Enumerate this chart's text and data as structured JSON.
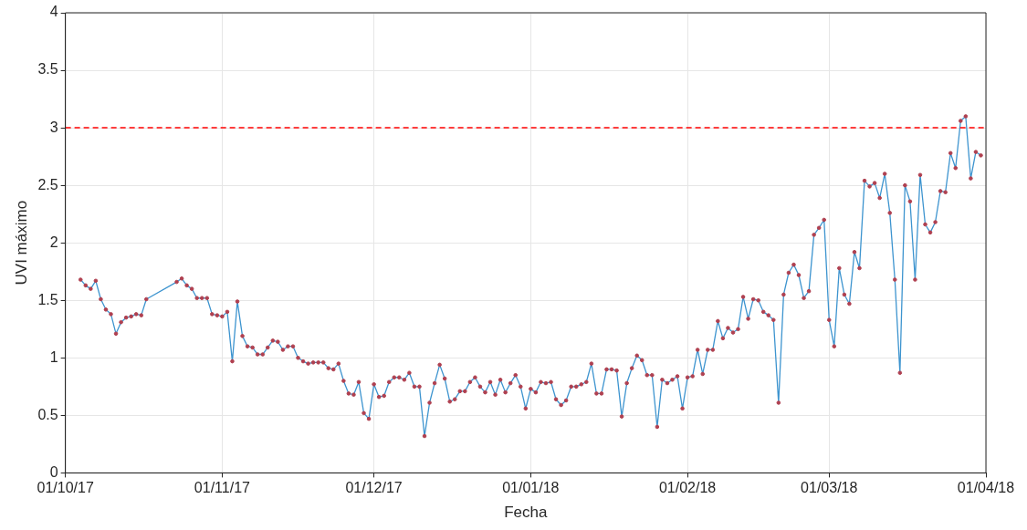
{
  "chart_data": {
    "type": "line",
    "xlabel": "Fecha",
    "ylabel": "UVI máximo",
    "x": [
      "2017-10-04",
      "2017-10-05",
      "2017-10-06",
      "2017-10-07",
      "2017-10-08",
      "2017-10-09",
      "2017-10-10",
      "2017-10-11",
      "2017-10-12",
      "2017-10-13",
      "2017-10-14",
      "2017-10-15",
      "2017-10-16",
      "2017-10-17",
      "2017-10-23",
      "2017-10-24",
      "2017-10-25",
      "2017-10-26",
      "2017-10-27",
      "2017-10-28",
      "2017-10-29",
      "2017-10-30",
      "2017-10-31",
      "2017-11-01",
      "2017-11-02",
      "2017-11-03",
      "2017-11-04",
      "2017-11-05",
      "2017-11-06",
      "2017-11-07",
      "2017-11-08",
      "2017-11-09",
      "2017-11-10",
      "2017-11-11",
      "2017-11-12",
      "2017-11-13",
      "2017-11-14",
      "2017-11-15",
      "2017-11-16",
      "2017-11-17",
      "2017-11-18",
      "2017-11-19",
      "2017-11-20",
      "2017-11-21",
      "2017-11-22",
      "2017-11-23",
      "2017-11-24",
      "2017-11-25",
      "2017-11-26",
      "2017-11-27",
      "2017-11-28",
      "2017-11-29",
      "2017-11-30",
      "2017-12-01",
      "2017-12-02",
      "2017-12-03",
      "2017-12-04",
      "2017-12-05",
      "2017-12-06",
      "2017-12-07",
      "2017-12-08",
      "2017-12-09",
      "2017-12-10",
      "2017-12-11",
      "2017-12-12",
      "2017-12-13",
      "2017-12-14",
      "2017-12-15",
      "2017-12-16",
      "2017-12-17",
      "2017-12-18",
      "2017-12-19",
      "2017-12-20",
      "2017-12-21",
      "2017-12-22",
      "2017-12-23",
      "2017-12-24",
      "2017-12-25",
      "2017-12-26",
      "2017-12-27",
      "2017-12-28",
      "2017-12-29",
      "2017-12-30",
      "2017-12-31",
      "2018-01-01",
      "2018-01-02",
      "2018-01-03",
      "2018-01-04",
      "2018-01-05",
      "2018-01-06",
      "2018-01-07",
      "2018-01-08",
      "2018-01-09",
      "2018-01-10",
      "2018-01-11",
      "2018-01-12",
      "2018-01-13",
      "2018-01-14",
      "2018-01-15",
      "2018-01-16",
      "2018-01-17",
      "2018-01-18",
      "2018-01-19",
      "2018-01-20",
      "2018-01-21",
      "2018-01-22",
      "2018-01-23",
      "2018-01-24",
      "2018-01-25",
      "2018-01-26",
      "2018-01-27",
      "2018-01-28",
      "2018-01-29",
      "2018-01-30",
      "2018-01-31",
      "2018-02-01",
      "2018-02-02",
      "2018-02-03",
      "2018-02-04",
      "2018-02-05",
      "2018-02-06",
      "2018-02-07",
      "2018-02-08",
      "2018-02-09",
      "2018-02-10",
      "2018-02-11",
      "2018-02-12",
      "2018-02-13",
      "2018-02-14",
      "2018-02-15",
      "2018-02-16",
      "2018-02-17",
      "2018-02-18",
      "2018-02-19",
      "2018-02-20",
      "2018-02-21",
      "2018-02-22",
      "2018-02-23",
      "2018-02-24",
      "2018-02-25",
      "2018-02-26",
      "2018-02-27",
      "2018-02-28",
      "2018-03-01",
      "2018-03-02",
      "2018-03-03",
      "2018-03-04",
      "2018-03-05",
      "2018-03-06",
      "2018-03-07",
      "2018-03-08",
      "2018-03-09",
      "2018-03-10",
      "2018-03-11",
      "2018-03-12",
      "2018-03-13",
      "2018-03-14",
      "2018-03-15",
      "2018-03-16",
      "2018-03-17",
      "2018-03-18",
      "2018-03-19",
      "2018-03-20",
      "2018-03-21",
      "2018-03-22",
      "2018-03-23",
      "2018-03-24",
      "2018-03-25",
      "2018-03-26",
      "2018-03-27",
      "2018-03-28",
      "2018-03-29",
      "2018-03-30",
      "2018-03-31"
    ],
    "series": [
      {
        "color": "#3d94cf",
        "values": [
          1.68,
          1.63,
          1.6,
          1.67,
          1.51,
          1.42,
          1.38,
          1.21,
          1.31,
          1.35,
          1.36,
          1.38,
          1.37,
          1.51,
          1.66,
          1.69,
          1.63,
          1.6,
          1.52,
          1.52,
          1.52,
          1.38,
          1.37,
          1.36,
          1.4,
          0.97,
          1.49,
          1.19,
          1.1,
          1.09,
          1.03,
          1.03,
          1.09,
          1.15,
          1.14,
          1.07,
          1.1,
          1.1,
          1.0,
          0.97,
          0.95,
          0.96,
          0.96,
          0.96,
          0.91,
          0.9,
          0.95,
          0.8,
          0.69,
          0.68,
          0.79,
          0.52,
          0.47,
          0.77,
          0.66,
          0.67,
          0.79,
          0.83,
          0.83,
          0.81,
          0.87,
          0.75,
          0.75,
          0.32,
          0.61,
          0.78,
          0.94,
          0.82,
          0.62,
          0.64,
          0.71,
          0.71,
          0.79,
          0.83,
          0.75,
          0.7,
          0.79,
          0.68,
          0.81,
          0.7,
          0.78,
          0.85,
          0.75,
          0.56,
          0.73,
          0.7,
          0.79,
          0.78,
          0.79,
          0.64,
          0.59,
          0.63,
          0.75,
          0.75,
          0.77,
          0.79,
          0.95,
          0.69,
          0.69,
          0.9,
          0.9,
          0.89,
          0.49,
          0.78,
          0.91,
          1.02,
          0.98,
          0.85,
          0.85,
          0.4,
          0.81,
          0.78,
          0.81,
          0.84,
          0.56,
          0.83,
          0.84,
          1.07,
          0.86,
          1.07,
          1.07,
          1.32,
          1.17,
          1.26,
          1.22,
          1.25,
          1.53,
          1.34,
          1.51,
          1.5,
          1.4,
          1.37,
          1.33,
          0.61,
          1.55,
          1.74,
          1.81,
          1.72,
          1.52,
          1.58,
          2.07,
          2.13,
          2.2,
          1.33,
          1.1,
          1.78,
          1.55,
          1.47,
          1.92,
          1.78,
          2.54,
          2.49,
          2.52,
          2.39,
          2.6,
          2.26,
          1.68,
          0.87,
          2.5,
          2.36,
          1.68,
          2.59,
          2.16,
          2.09,
          2.18,
          2.45,
          2.44,
          2.78,
          2.65,
          3.06,
          3.1,
          2.56,
          2.79,
          2.76
        ]
      }
    ],
    "xlim": [
      "2017-10-01",
      "2018-04-01"
    ],
    "xticks": [
      {
        "value": "2017-10-01",
        "label": "01/10/17"
      },
      {
        "value": "2017-11-01",
        "label": "01/11/17"
      },
      {
        "value": "2017-12-01",
        "label": "01/12/17"
      },
      {
        "value": "2018-01-01",
        "label": "01/01/18"
      },
      {
        "value": "2018-02-01",
        "label": "01/02/18"
      },
      {
        "value": "2018-03-01",
        "label": "01/03/18"
      },
      {
        "value": "2018-04-01",
        "label": "01/04/18"
      }
    ],
    "ylim": [
      0,
      4
    ],
    "yticks": [
      0,
      0.5,
      1,
      1.5,
      2,
      2.5,
      3,
      3.5,
      4
    ],
    "ref_lines": [
      {
        "axis": "y",
        "value": 3,
        "color": "#ff0000",
        "line_style": "dashed"
      }
    ],
    "grid": true,
    "legend": false,
    "marker": "circle",
    "line_style": "solid"
  }
}
